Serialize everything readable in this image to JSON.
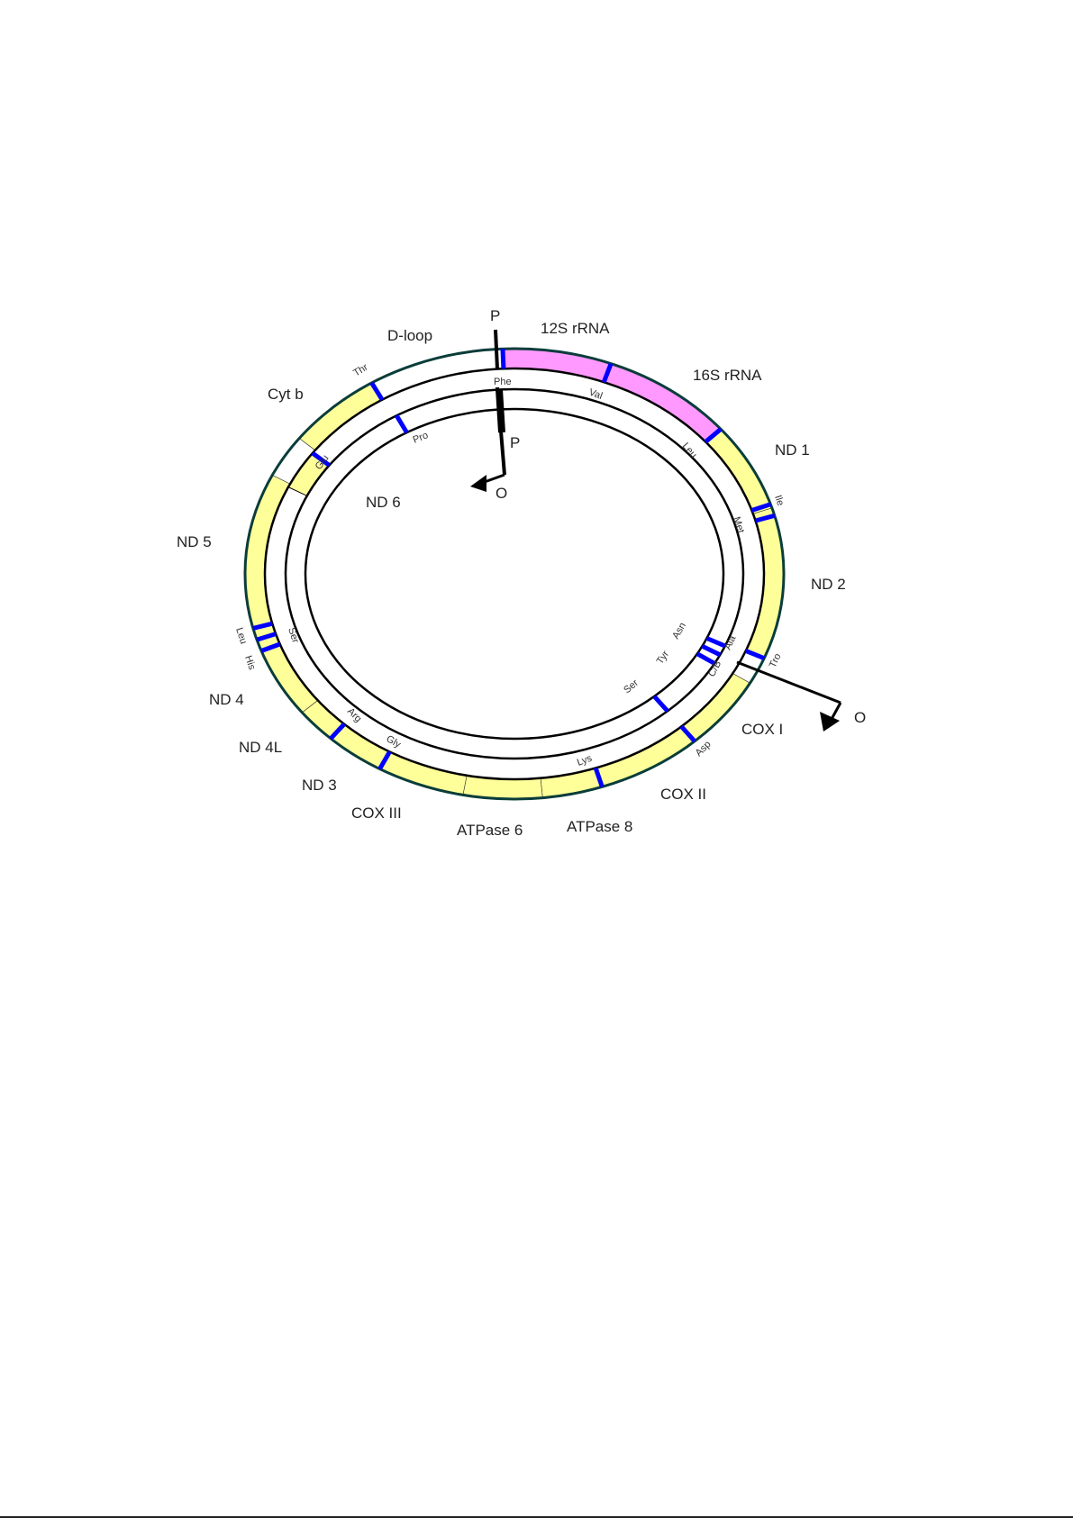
{
  "diagram": {
    "colors": {
      "rrna": "#ff99ff",
      "protein_gene": "#ffff99",
      "trna_mark": "#0000ff",
      "ring_outline": "#0a3d3a",
      "line": "#000000"
    },
    "promoter_labels": {
      "heavy_promoter": "P",
      "light_promoter": "P",
      "heavy_origin": "O",
      "light_origin": "O"
    },
    "genes": {
      "dloop": "D-loop",
      "rrna12s": "12S rRNA",
      "rrna16s": "16S rRNA",
      "nd1": "ND 1",
      "nd2": "ND 2",
      "cox1": "COX I",
      "cox2": "COX II",
      "atpase8": "ATPase 8",
      "atpase6": "ATPase 6",
      "cox3": "COX III",
      "nd3": "ND 3",
      "nd4l": "ND 4L",
      "nd4": "ND 4",
      "nd5": "ND 5",
      "cytb": "Cyt b",
      "nd6": "ND 6"
    },
    "trna": {
      "thr": "Thr",
      "phe": "Phe",
      "val": "Val",
      "leu1": "Leu",
      "ile": "Ile",
      "met": "Met",
      "glu": "Glu",
      "pro": "Pro",
      "leu2": "Leu",
      "his": "His",
      "ser1": "Ser",
      "arg": "Arg",
      "gly": "Gly",
      "lys": "Lys",
      "asp": "Asp",
      "ser2": "Ser",
      "tyr": "Tyr",
      "asn": "Asn",
      "cys": "C/B",
      "ala": "Ala",
      "trp": "Tro"
    }
  }
}
